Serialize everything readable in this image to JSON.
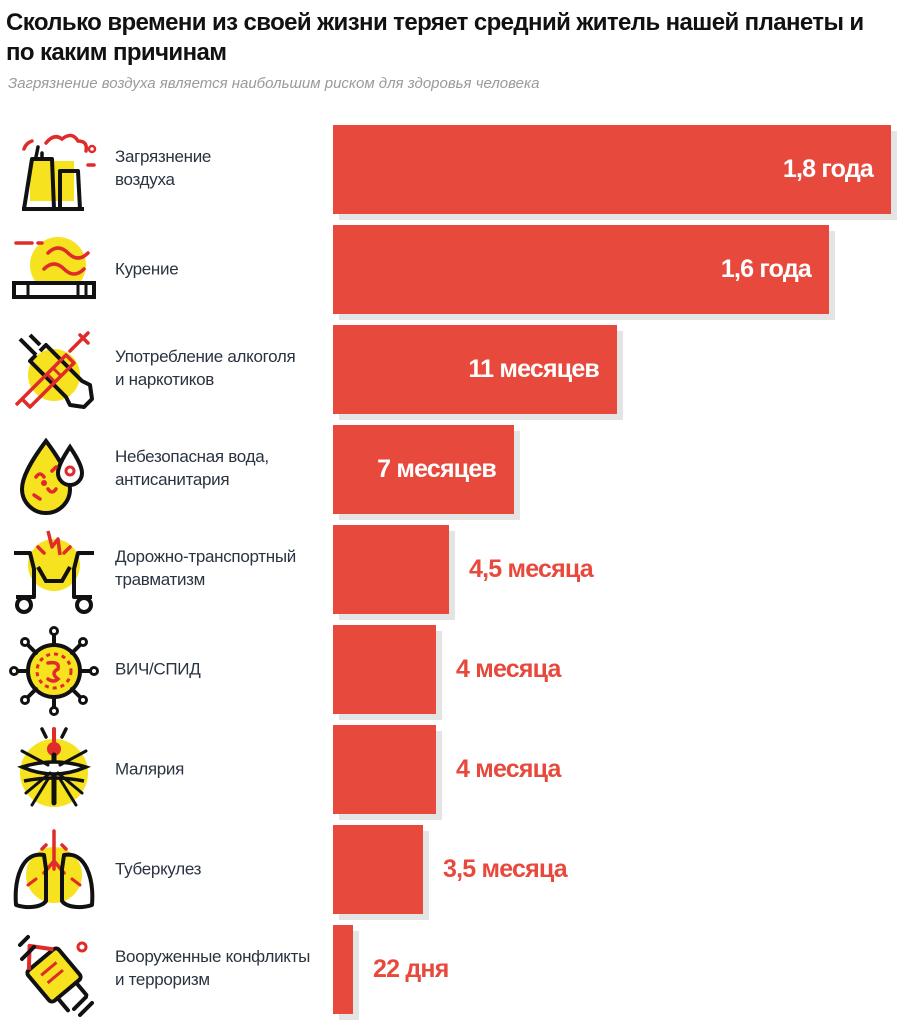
{
  "title": "Сколько времени из своей жизни теряет средний житель нашей планеты и по каким причинам",
  "subtitle": "Загрязнение воздуха является наибольшим риском для здоровья человека",
  "colors": {
    "bar": "#e8493d",
    "shadow": "#e4e4e4",
    "icon_accent": "#f6e21f",
    "icon_line": "#111111",
    "icon_red": "#e02b2b"
  },
  "chart_data": {
    "type": "bar",
    "orientation": "horizontal",
    "title": "Сколько времени из своей жизни теряет средний житель нашей планеты и по каким причинам",
    "subtitle": "Загрязнение воздуха является наибольшим риском для здоровья человека",
    "unit": "месяцы",
    "xlim": [
      0,
      21.6
    ],
    "grid": false,
    "legend": "none",
    "categories": [
      "Загрязнение воздуха",
      "Курение",
      "Употребление алкоголя и наркотиков",
      "Небезопасная вода, антисанитария",
      "Дорожно-транспортный травматизм",
      "ВИЧ/СПИД",
      "Малярия",
      "Туберкулез",
      "Вооруженные конфликты и терроризм"
    ],
    "values": [
      21.6,
      19.2,
      11,
      7,
      4.5,
      4,
      4,
      3.5,
      0.73
    ],
    "items": [
      {
        "label_lines": [
          "Загрязнение",
          "воздуха"
        ],
        "value": 21.6,
        "value_label": "1,8 года",
        "icon": "factory-smoke-icon"
      },
      {
        "label_lines": [
          "Курение"
        ],
        "value": 19.2,
        "value_label": "1,6 года",
        "icon": "cigarette-icon"
      },
      {
        "label_lines": [
          "Употребление алкоголя",
          "и наркотиков"
        ],
        "value": 11,
        "value_label": "11 месяцев",
        "icon": "bottle-syringe-icon"
      },
      {
        "label_lines": [
          "Небезопасная вода,",
          "антисанитария"
        ],
        "value": 7,
        "value_label": "7 месяцев",
        "icon": "contaminated-water-drop-icon"
      },
      {
        "label_lines": [
          "Дорожно-транспортный",
          "травматизм"
        ],
        "value": 4.5,
        "value_label": "4,5 месяца",
        "icon": "car-crash-icon"
      },
      {
        "label_lines": [
          "ВИЧ/СПИД"
        ],
        "value": 4,
        "value_label": "4 месяца",
        "icon": "virus-icon"
      },
      {
        "label_lines": [
          "Малярия"
        ],
        "value": 4,
        "value_label": "4 месяца",
        "icon": "mosquito-icon"
      },
      {
        "label_lines": [
          "Туберкулез"
        ],
        "value": 3.5,
        "value_label": "3,5 месяца",
        "icon": "lungs-icon"
      },
      {
        "label_lines": [
          "Вооруженные конфликты",
          "и терроризм"
        ],
        "value": 0.73,
        "value_label": "22 дня",
        "icon": "bomb-icon"
      }
    ]
  }
}
